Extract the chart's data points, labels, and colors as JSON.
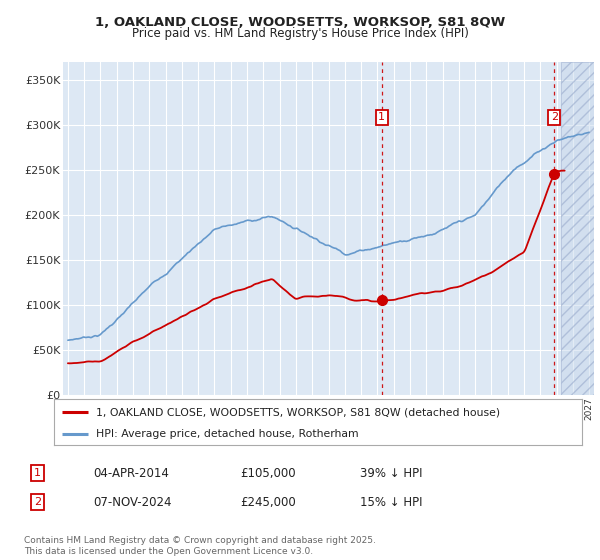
{
  "title_line1": "1, OAKLAND CLOSE, WOODSETTS, WORKSOP, S81 8QW",
  "title_line2": "Price paid vs. HM Land Registry's House Price Index (HPI)",
  "ylim": [
    0,
    370000
  ],
  "yticks": [
    0,
    50000,
    100000,
    150000,
    200000,
    250000,
    300000,
    350000
  ],
  "ytick_labels": [
    "£0",
    "£50K",
    "£100K",
    "£150K",
    "£200K",
    "£250K",
    "£300K",
    "£350K"
  ],
  "bg_color": "#ffffff",
  "plot_bg": "#dde8f4",
  "hpi_color": "#6699cc",
  "price_color": "#cc0000",
  "legend_line1": "1, OAKLAND CLOSE, WOODSETTS, WORKSOP, S81 8QW (detached house)",
  "legend_line2": "HPI: Average price, detached house, Rotherham",
  "footnote": "Contains HM Land Registry data © Crown copyright and database right 2025.\nThis data is licensed under the Open Government Licence v3.0.",
  "grid_color": "#ffffff",
  "xmin": 1994.7,
  "xmax": 2027.3,
  "marker1_x": 2014.27,
  "marker1_y": 105000,
  "marker2_x": 2024.87,
  "marker2_y": 245000,
  "hatch_start": 2025.3
}
